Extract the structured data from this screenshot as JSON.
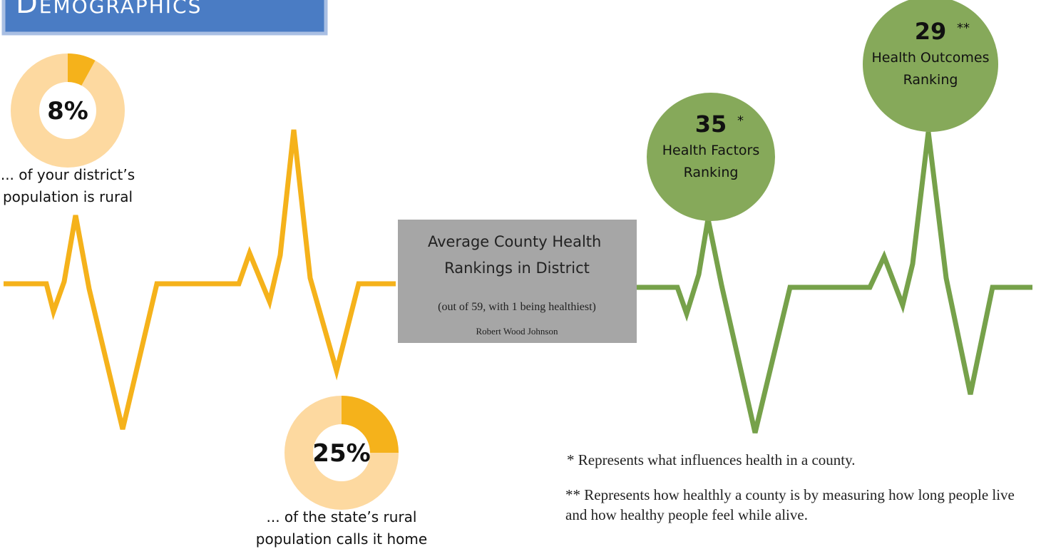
{
  "header": {
    "title": "Demographics"
  },
  "donuts": [
    {
      "value": 8,
      "value_label": "8%",
      "caption": [
        "... of your district’s",
        "population is rural"
      ]
    },
    {
      "value": 25,
      "value_label": "25%",
      "caption": [
        "... of the state’s rural",
        "population calls it home"
      ]
    }
  ],
  "rankings": {
    "title": [
      "Average County Health",
      "Rankings in District"
    ],
    "subtitle": "(out of 59, with 1 being healthiest)",
    "source": "Robert Wood Johnson",
    "items": [
      {
        "value": 35,
        "marker": "*",
        "label": [
          "Health Factors",
          "Ranking"
        ]
      },
      {
        "value": 29,
        "marker": "**",
        "label": [
          "Health Outcomes",
          "Ranking"
        ]
      }
    ]
  },
  "notes": [
    "* Represents what influences health in a county.",
    "** Represents how healthly a county is by measuring how long people live and how healthy people feel while alive."
  ]
}
